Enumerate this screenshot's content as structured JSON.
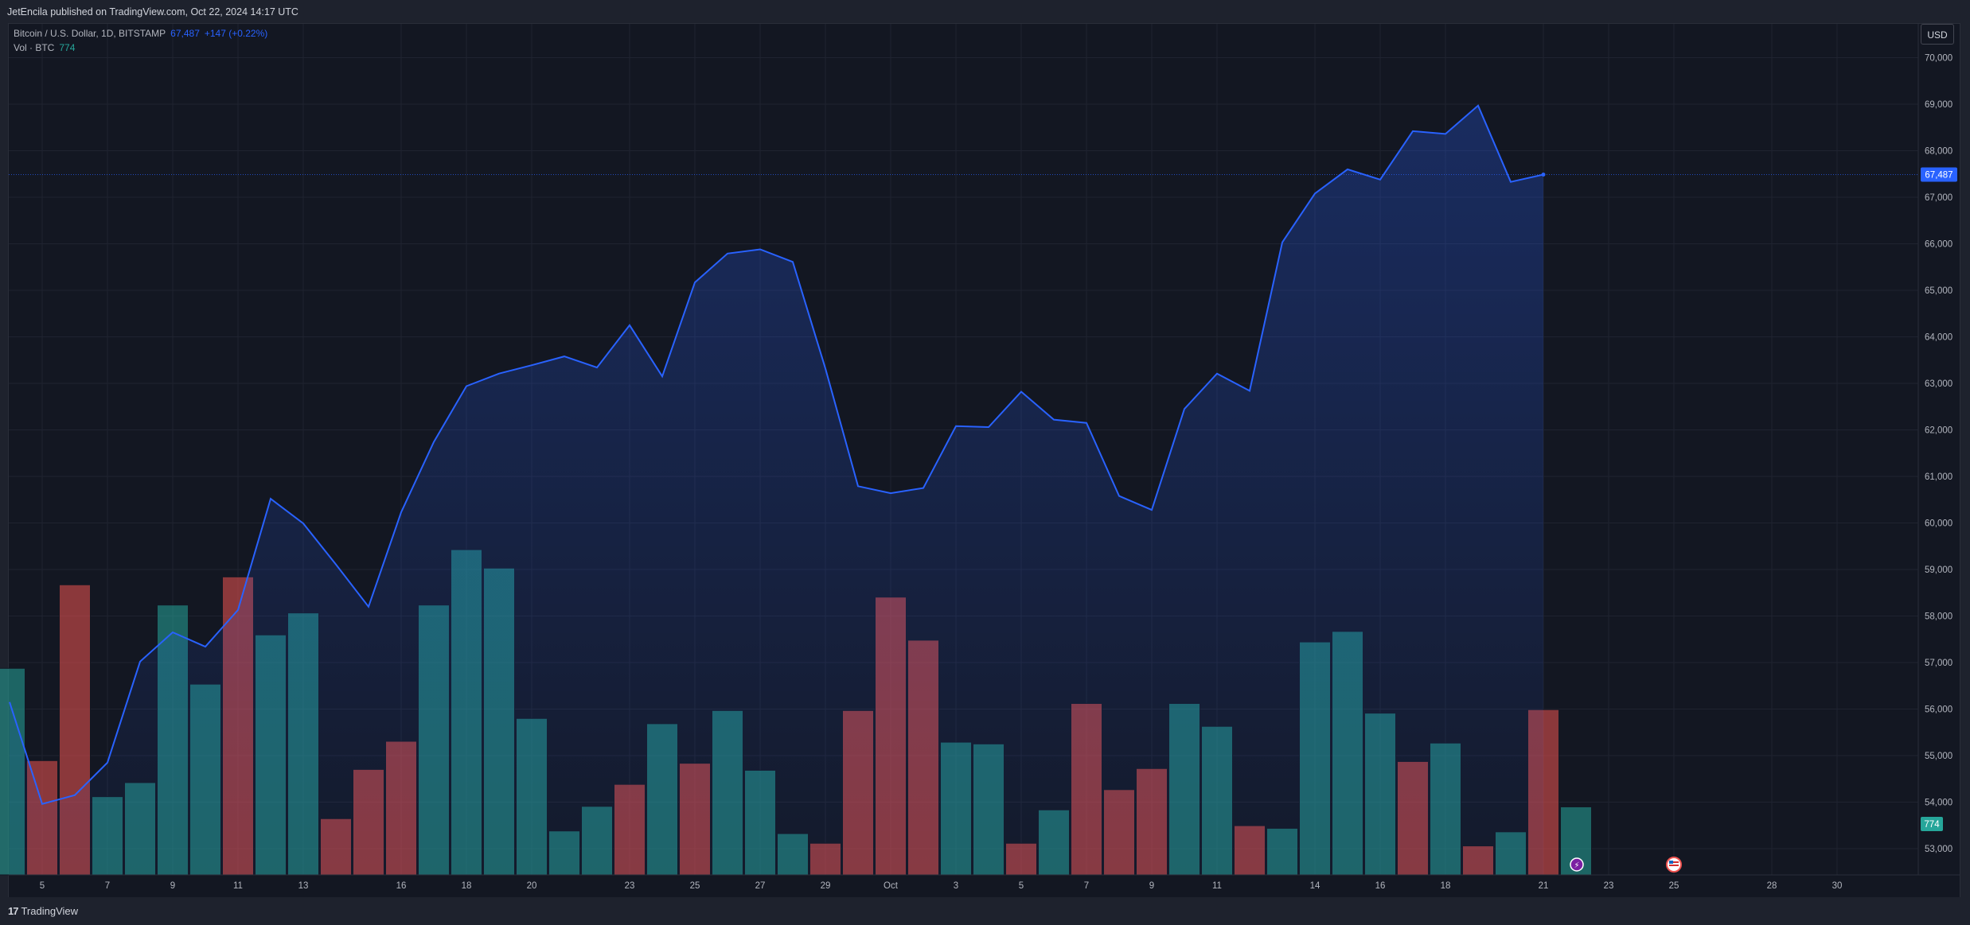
{
  "header": {
    "published": "JetEncila published on TradingView.com, Oct 22, 2024 14:17 UTC"
  },
  "legend": {
    "symbol": "Bitcoin / U.S. Dollar, 1D, BITSTAMP",
    "last": "67,487",
    "change": "+147 (+0.22%)",
    "volume_label": "Vol · BTC",
    "volume_value": "774"
  },
  "currency": "USD",
  "footer": {
    "logo_mark": "17",
    "logo_text": "TradingView"
  },
  "colors": {
    "line": "#2962ff",
    "vol_up": "#26a69a",
    "vol_down": "#ef5350",
    "bg": "#131722"
  },
  "chart_data": {
    "type": "area",
    "title": "Bitcoin / U.S. Dollar, 1D, BITSTAMP",
    "x": [
      "Sep 4",
      "Sep 5",
      "Sep 6",
      "Sep 7",
      "Sep 8",
      "Sep 9",
      "Sep 10",
      "Sep 11",
      "Sep 12",
      "Sep 13",
      "Sep 14",
      "Sep 15",
      "Sep 16",
      "Sep 17",
      "Sep 18",
      "Sep 19",
      "Sep 20",
      "Sep 21",
      "Sep 22",
      "Sep 23",
      "Sep 24",
      "Sep 25",
      "Sep 26",
      "Sep 27",
      "Sep 28",
      "Sep 29",
      "Sep 30",
      "Oct 1",
      "Oct 2",
      "Oct 3",
      "Oct 4",
      "Oct 5",
      "Oct 6",
      "Oct 7",
      "Oct 8",
      "Oct 9",
      "Oct 10",
      "Oct 11",
      "Oct 12",
      "Oct 13",
      "Oct 14",
      "Oct 15",
      "Oct 16",
      "Oct 17",
      "Oct 18",
      "Oct 19",
      "Oct 20",
      "Oct 21",
      "Oct 22"
    ],
    "series": [
      {
        "name": "Bitcoin / U.S. Dollar",
        "values": [
          56150,
          53960,
          54150,
          54850,
          57020,
          57650,
          57340,
          58130,
          60520,
          59990,
          59110,
          58200,
          60230,
          61740,
          62940,
          63210,
          63390,
          63580,
          63340,
          64250,
          63150,
          65170,
          65790,
          65880,
          65610,
          63320,
          60790,
          60640,
          60750,
          62080,
          62060,
          62820,
          62220,
          62150,
          60580,
          60280,
          62450,
          63210,
          62840,
          66030,
          67080,
          67600,
          67380,
          68420,
          68360,
          68970,
          67330,
          67487,
          null
        ]
      },
      {
        "name": "Vol · BTC",
        "values": [
          2350,
          1300,
          3300,
          890,
          1050,
          3070,
          2170,
          3390,
          2730,
          2980,
          640,
          1200,
          1520,
          3070,
          3700,
          3490,
          1780,
          500,
          780,
          1030,
          1720,
          1270,
          1870,
          1190,
          470,
          360,
          1870,
          3160,
          2670,
          1510,
          1490,
          360,
          740,
          1950,
          970,
          1210,
          1950,
          1690,
          560,
          530,
          2650,
          2770,
          1840,
          1290,
          1500,
          330,
          490,
          1880,
          774
        ]
      }
    ],
    "candle_direction": [
      "up",
      "down",
      "down",
      "up",
      "up",
      "up",
      "up",
      "down",
      "up",
      "up",
      "down",
      "down",
      "down",
      "up",
      "up",
      "up",
      "up",
      "up",
      "up",
      "down",
      "up",
      "down",
      "up",
      "up",
      "up",
      "down",
      "down",
      "down",
      "down",
      "up",
      "up",
      "down",
      "up",
      "down",
      "down",
      "down",
      "up",
      "up",
      "down",
      "up",
      "up",
      "up",
      "up",
      "down",
      "up",
      "down",
      "up",
      "down",
      "up"
    ],
    "y_ticks": [
      "53,000",
      "54,000",
      "55,000",
      "56,000",
      "57,000",
      "58,000",
      "59,000",
      "60,000",
      "61,000",
      "62,000",
      "63,000",
      "64,000",
      "65,000",
      "66,000",
      "67,000",
      "68,000",
      "69,000",
      "70,000"
    ],
    "x_ticks": [
      "5",
      "7",
      "9",
      "11",
      "13",
      "16",
      "18",
      "20",
      "23",
      "25",
      "27",
      "29",
      "Oct",
      "3",
      "5",
      "7",
      "9",
      "11",
      "14",
      "16",
      "18",
      "21",
      "23",
      "25",
      "28",
      "30"
    ],
    "ylim": [
      52500,
      70200
    ],
    "last_price_label": "67,487",
    "last_volume_label": "774",
    "grid": true,
    "legend": "top-left"
  }
}
